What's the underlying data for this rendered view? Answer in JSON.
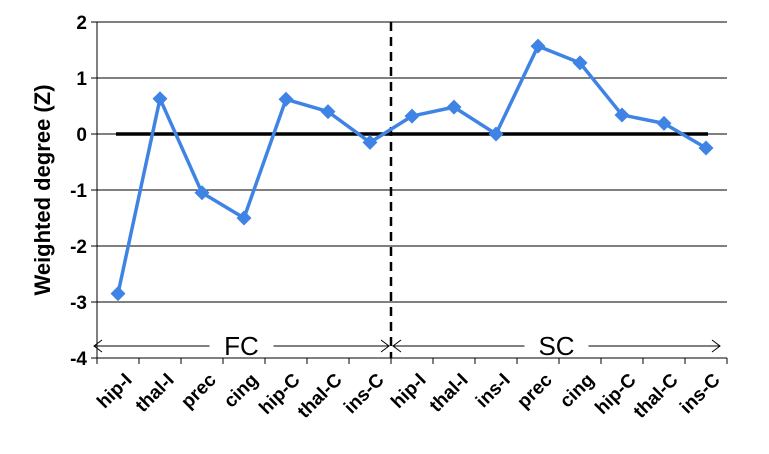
{
  "chart_data": {
    "type": "line",
    "ylabel": "Weighted degree (Z)",
    "xlabel": "",
    "title": "",
    "ylim": [
      -4,
      2
    ],
    "y_ticks": [
      2,
      1,
      0,
      -1,
      -2,
      -3,
      -4
    ],
    "y_tick_labels": [
      "2",
      "1",
      "0",
      "-1",
      "-2",
      "-3",
      "-4"
    ],
    "grid": "horizontal",
    "categories": [
      "hip-I",
      "thal-I",
      "prec",
      "cing",
      "hip-C",
      "thal-C",
      "ins-C",
      "hip-I",
      "thal-I",
      "ins-I",
      "prec",
      "cing",
      "hip-C",
      "thal-C",
      "ins-C"
    ],
    "series": [
      {
        "color": "#3f84e5",
        "marker": "diamond",
        "values": [
          -2.85,
          0.63,
          -1.05,
          -1.5,
          0.62,
          0.4,
          -0.15,
          0.32,
          0.48,
          0.0,
          1.57,
          1.27,
          0.34,
          0.19,
          -0.25
        ]
      }
    ],
    "reference_line": {
      "y": 0,
      "color": "#000000"
    },
    "divider": {
      "between_categories": [
        6,
        7
      ],
      "style": "dashed"
    },
    "groups": [
      {
        "label": "FC",
        "start_index": 0,
        "end_index": 6
      },
      {
        "label": "SC",
        "start_index": 7,
        "end_index": 14
      }
    ]
  }
}
